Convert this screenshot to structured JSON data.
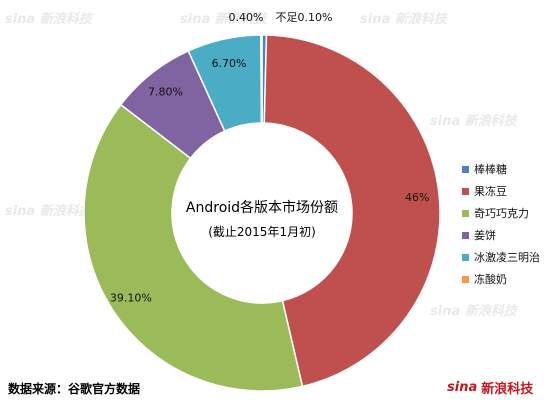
{
  "chart_data": {
    "type": "pie",
    "donut": true,
    "title": "Android各版本市场份额",
    "subtitle": "(截止2015年1月初)",
    "categories": [
      "棒棒糖",
      "果冻豆",
      "奇巧巧克力",
      "姜饼",
      "冰激凌三明治",
      "冻酸奶"
    ],
    "values": [
      0.4,
      46,
      39.1,
      7.8,
      6.7,
      0.1
    ],
    "value_labels": [
      "0.40%",
      "46%",
      "39.10%",
      "7.80%",
      "6.70%",
      "不足0.10%"
    ],
    "colors": [
      "#4f81bd",
      "#c0504d",
      "#9bbb59",
      "#8064a2",
      "#4bacc6",
      "#f79646"
    ],
    "legend_position": "right"
  },
  "source": "数据来源：谷歌官方数据",
  "logo": {
    "brand": "sina",
    "name": "新浪科技",
    "colors": {
      "brand": "#c8161d",
      "eye": "#e8a317"
    }
  }
}
